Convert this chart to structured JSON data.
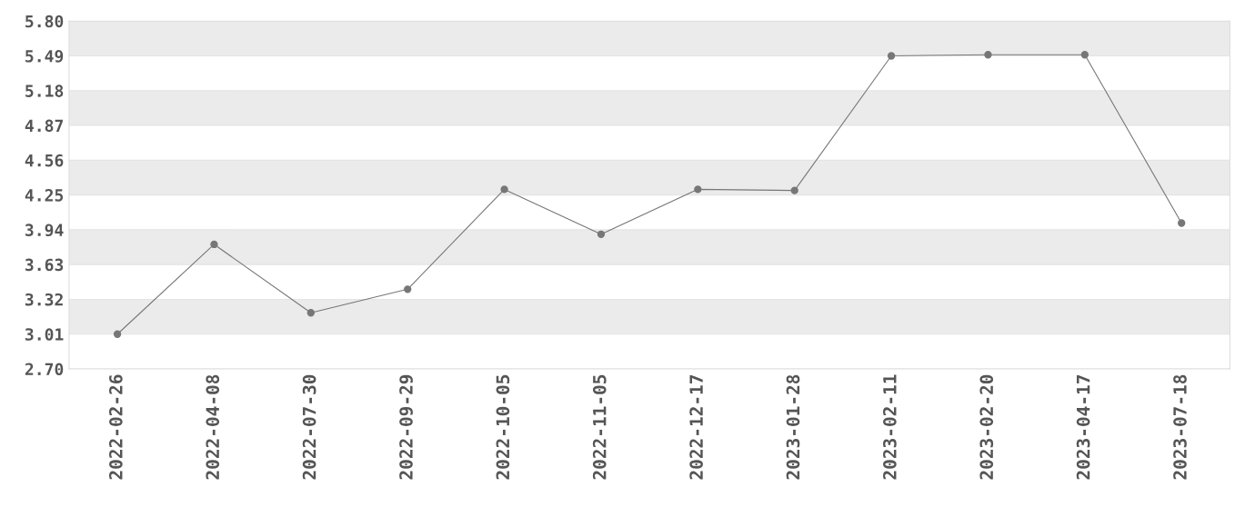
{
  "chart_data": {
    "type": "line",
    "categories": [
      "2022-02-26",
      "2022-04-08",
      "2022-07-30",
      "2022-09-29",
      "2022-10-05",
      "2022-11-05",
      "2022-12-17",
      "2023-01-28",
      "2023-02-11",
      "2023-02-20",
      "2023-04-17",
      "2023-07-18"
    ],
    "series": [
      {
        "color": "#777777",
        "values": [
          3.01,
          3.81,
          3.2,
          3.41,
          4.3,
          3.9,
          4.3,
          4.29,
          5.49,
          5.5,
          5.5,
          4.0
        ]
      }
    ],
    "ylim": [
      2.7,
      5.8
    ],
    "yticks": [
      {
        "value": 2.7,
        "label": "2.70"
      },
      {
        "value": 3.01,
        "label": "3.01"
      },
      {
        "value": 3.32,
        "label": "3.32"
      },
      {
        "value": 3.63,
        "label": "3.63"
      },
      {
        "value": 3.94,
        "label": "3.94"
      },
      {
        "value": 4.25,
        "label": "4.25"
      },
      {
        "value": 4.56,
        "label": "4.56"
      },
      {
        "value": 4.87,
        "label": "4.87"
      },
      {
        "value": 5.18,
        "label": "5.18"
      },
      {
        "value": 5.49,
        "label": "5.49"
      },
      {
        "value": 5.8,
        "label": "5.80"
      }
    ],
    "grid": "y",
    "marker": "circle",
    "line_style": "solid",
    "legend": false
  }
}
